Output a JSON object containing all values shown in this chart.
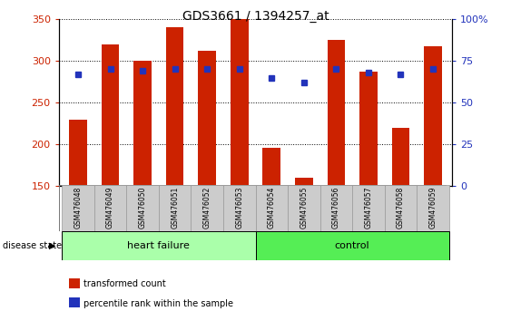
{
  "title": "GDS3661 / 1394257_at",
  "samples": [
    "GSM476048",
    "GSM476049",
    "GSM476050",
    "GSM476051",
    "GSM476052",
    "GSM476053",
    "GSM476054",
    "GSM476055",
    "GSM476056",
    "GSM476057",
    "GSM476058",
    "GSM476059"
  ],
  "transformed_count": [
    230,
    320,
    300,
    340,
    312,
    350,
    196,
    160,
    325,
    287,
    220,
    318
  ],
  "percentile_rank": [
    67,
    70,
    69,
    70,
    70,
    70,
    65,
    62,
    70,
    68,
    67,
    70
  ],
  "ylim_left": [
    150,
    350
  ],
  "ylim_right": [
    0,
    100
  ],
  "yticks_left": [
    150,
    200,
    250,
    300,
    350
  ],
  "yticks_right": [
    0,
    25,
    50,
    75,
    100
  ],
  "ytick_right_labels": [
    "0",
    "25",
    "50",
    "75",
    "100%"
  ],
  "bar_color": "#CC2200",
  "dot_color": "#2233BB",
  "bg_color": "#FFFFFF",
  "heart_failure_indices": [
    0,
    1,
    2,
    3,
    4,
    5
  ],
  "control_indices": [
    6,
    7,
    8,
    9,
    10,
    11
  ],
  "heart_failure_label": "heart failure",
  "control_label": "control",
  "disease_state_label": "disease state",
  "legend_bar_label": "transformed count",
  "legend_dot_label": "percentile rank within the sample",
  "tick_label_bg": "#CCCCCC",
  "tick_label_edge": "#999999",
  "hf_fill": "#AAFFAA",
  "ctrl_fill": "#55EE55",
  "bar_width": 0.55
}
